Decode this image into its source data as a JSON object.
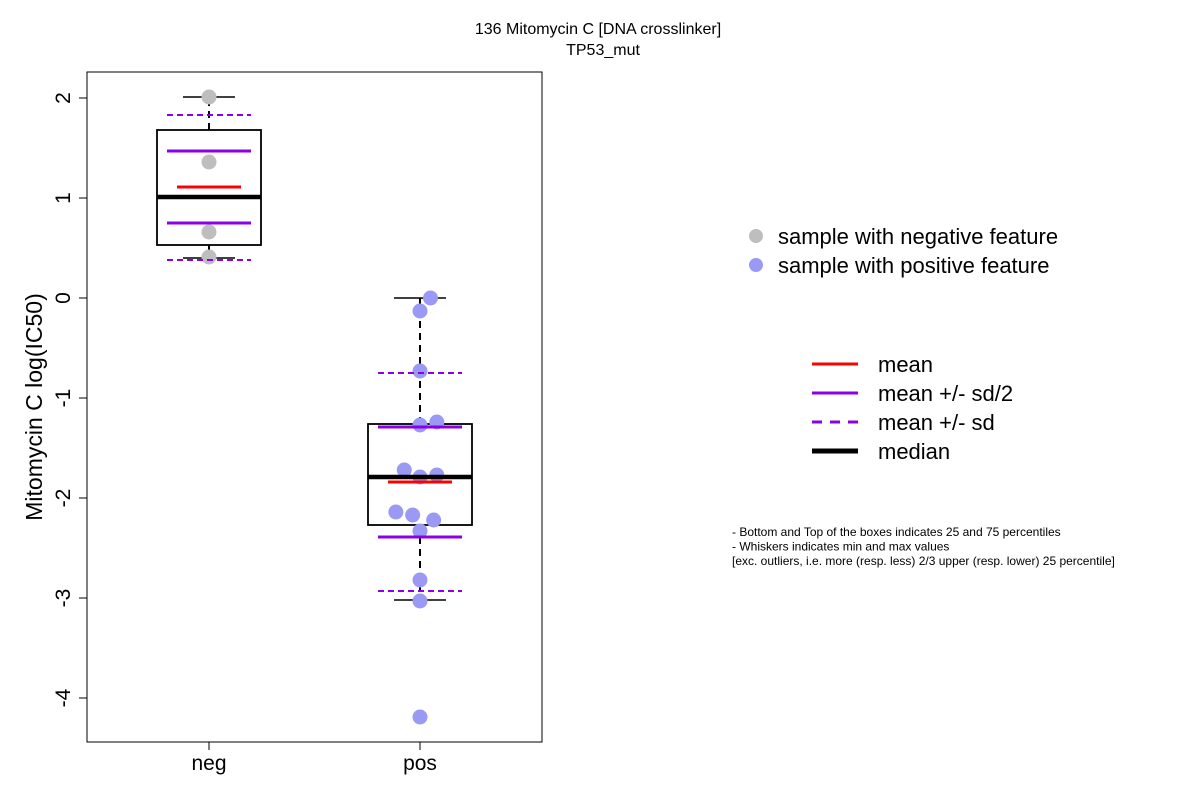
{
  "chart_data": {
    "type": "box",
    "title": "136 Mitomycin C [DNA crosslinker]",
    "subtitle": "TP53_mut",
    "ylabel": "Mitomycin C log(IC50)",
    "xlabel": "",
    "ylim": [
      -4.44,
      2.26
    ],
    "y_ticks": [
      2,
      1,
      0,
      -1,
      -2,
      -3,
      -4
    ],
    "y_tick_labels": [
      "2",
      "1",
      "0",
      "-1",
      "-2",
      "-3",
      "-4"
    ],
    "categories": [
      "neg",
      "pos"
    ],
    "groups": [
      {
        "name": "neg",
        "point_color": "#bebebe",
        "points": [
          2.01,
          1.36,
          0.66,
          0.41
        ],
        "point_offsets": [
          0,
          0,
          0,
          0
        ],
        "q1": 0.53,
        "median": 1.01,
        "q3": 1.68,
        "whisker_low": 0.4,
        "whisker_high": 2.01,
        "mean": 1.11,
        "mean_plus_half_sd": 1.47,
        "mean_minus_half_sd": 0.75,
        "mean_plus_sd": 1.83,
        "mean_minus_sd": 0.38
      },
      {
        "name": "pos",
        "point_color": "#9a9af5",
        "points": [
          0.0,
          -0.13,
          -0.73,
          -1.24,
          -1.27,
          -1.72,
          -1.77,
          -1.79,
          -2.14,
          -2.17,
          -2.22,
          -2.33,
          -2.82,
          -3.03,
          -4.19
        ],
        "point_offsets": [
          0.1,
          0,
          0,
          0.16,
          0,
          -0.15,
          0.16,
          0,
          -0.23,
          -0.07,
          0.13,
          0,
          0,
          0,
          0
        ],
        "q1": -2.27,
        "median": -1.79,
        "q3": -1.26,
        "whisker_low": -3.02,
        "whisker_high": 0.0,
        "mean": -1.84,
        "mean_plus_half_sd": -1.29,
        "mean_minus_half_sd": -2.39,
        "mean_plus_sd": -0.75,
        "mean_minus_sd": -2.93
      }
    ],
    "colors": {
      "mean": "#ff0000",
      "sd": "#8b00e6",
      "median": "#000000"
    },
    "legend_points": [
      {
        "label": "sample with negative feature",
        "color": "#bebebe"
      },
      {
        "label": "sample with positive feature",
        "color": "#9a9af5"
      }
    ],
    "legend_lines": [
      {
        "label": "mean",
        "color": "#ff0000",
        "style": "solid"
      },
      {
        "label": "mean +/- sd/2",
        "color": "#8b00e6",
        "style": "solid"
      },
      {
        "label": "mean +/- sd",
        "color": "#8b00e6",
        "style": "dashed"
      },
      {
        "label": "median",
        "color": "#000000",
        "style": "thick"
      }
    ],
    "notes": [
      "- Bottom and Top of the boxes indicates 25 and 75 percentiles",
      "- Whiskers indicates min and max values",
      "[exc. outliers, i.e. more (resp. less) 2/3 upper (resp. lower) 25 percentile]"
    ]
  }
}
